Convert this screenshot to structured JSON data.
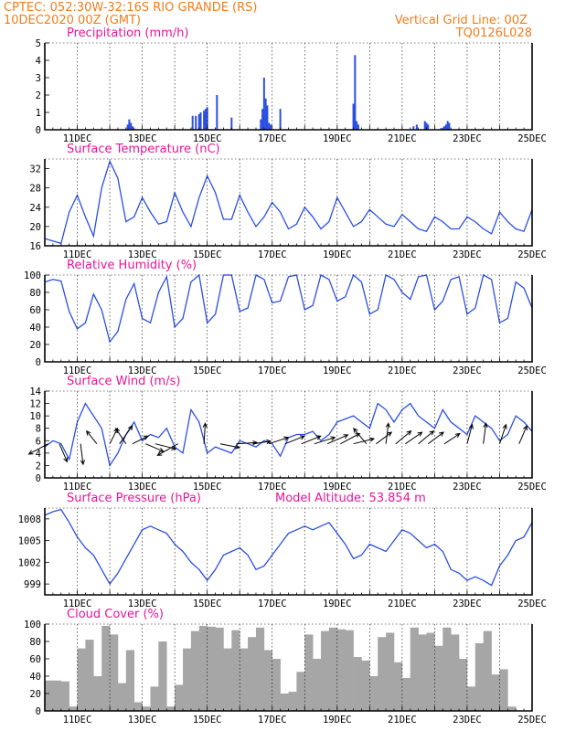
{
  "header": {
    "line1": "CPTEC:   052:30W-32:16S   RIO GRANDE (RS)",
    "line2": "10DEC2020 00Z (GMT)",
    "right1": "Vertical Grid Line: 00Z",
    "right2": "TQ0126L028"
  },
  "x_axis": {
    "start": "10DEC2020 00Z",
    "end": "25DEC2020 00Z",
    "tick_labels": [
      "11DEC",
      "13DEC",
      "15DEC",
      "17DEC",
      "19DEC",
      "21DEC",
      "23DEC",
      "25DEC"
    ],
    "tick_days": [
      1,
      3,
      5,
      7,
      9,
      11,
      13,
      15
    ]
  },
  "colors": {
    "header": "#f07d1a",
    "title": "#e8159b",
    "series": "#2b4fe0",
    "cloud": "#a6a6a6"
  },
  "chart_data": [
    {
      "type": "bar",
      "title": "Precipitation (mm/h)",
      "ylim": [
        0,
        5
      ],
      "y_ticks": [
        0,
        1,
        2,
        3,
        4,
        5
      ],
      "x_unit": "days since 10DEC2020 00Z",
      "points": [
        [
          2.55,
          0.3
        ],
        [
          2.6,
          0.6
        ],
        [
          2.65,
          0.4
        ],
        [
          2.7,
          0.2
        ],
        [
          4.55,
          0.8
        ],
        [
          4.65,
          0.8
        ],
        [
          4.75,
          0.9
        ],
        [
          4.8,
          1.0
        ],
        [
          4.9,
          1.1
        ],
        [
          4.95,
          1.2
        ],
        [
          5.0,
          1.3
        ],
        [
          5.3,
          2.0
        ],
        [
          5.75,
          0.7
        ],
        [
          6.65,
          0.6
        ],
        [
          6.7,
          1.2
        ],
        [
          6.75,
          3.0
        ],
        [
          6.8,
          1.8
        ],
        [
          6.85,
          1.4
        ],
        [
          6.9,
          0.4
        ],
        [
          6.95,
          0.3
        ],
        [
          7.25,
          1.2
        ],
        [
          9.5,
          1.5
        ],
        [
          9.55,
          4.3
        ],
        [
          9.6,
          0.5
        ],
        [
          9.65,
          0.3
        ],
        [
          11.35,
          0.2
        ],
        [
          11.45,
          0.3
        ],
        [
          11.7,
          0.5
        ],
        [
          11.75,
          0.4
        ],
        [
          11.8,
          0.3
        ],
        [
          12.2,
          0.1
        ],
        [
          12.3,
          0.2
        ],
        [
          12.35,
          0.3
        ],
        [
          12.4,
          0.5
        ],
        [
          12.45,
          0.4
        ]
      ]
    },
    {
      "type": "line",
      "title": "Surface Temperature (nC)",
      "ylim": [
        16,
        34
      ],
      "y_ticks": [
        16,
        20,
        24,
        28,
        32
      ],
      "x": [
        0,
        0.25,
        0.5,
        0.75,
        1.0,
        1.25,
        1.5,
        1.75,
        2.0,
        2.25,
        2.5,
        2.75,
        3.0,
        3.25,
        3.5,
        3.75,
        4.0,
        4.25,
        4.5,
        4.75,
        5.0,
        5.25,
        5.5,
        5.75,
        6.0,
        6.25,
        6.5,
        6.75,
        7.0,
        7.25,
        7.5,
        7.75,
        8.0,
        8.25,
        8.5,
        8.75,
        9.0,
        9.25,
        9.5,
        9.75,
        10.0,
        10.25,
        10.5,
        10.75,
        11.0,
        11.25,
        11.5,
        11.75,
        12.0,
        12.25,
        12.5,
        12.75,
        13.0,
        13.25,
        13.5,
        13.75,
        14.0,
        14.25,
        14.5,
        14.75,
        15.0
      ],
      "values": [
        17.5,
        17,
        16.5,
        23,
        26.5,
        22,
        18,
        28,
        33.5,
        30,
        21,
        22,
        26,
        23,
        20.5,
        21,
        27,
        23,
        20,
        26,
        30.5,
        27,
        21.5,
        21.5,
        26.5,
        23,
        20,
        22,
        25,
        23,
        19.5,
        20.5,
        24,
        22,
        19.5,
        21,
        26,
        23,
        20,
        21,
        23.5,
        22,
        20.5,
        20,
        22.5,
        21,
        19.5,
        19,
        22,
        21,
        19.5,
        19.5,
        22,
        21,
        19.5,
        18.5,
        23,
        21,
        19.5,
        19,
        23.5
      ]
    },
    {
      "type": "line",
      "title": "Relative Humidity (%)",
      "ylim": [
        0,
        100
      ],
      "y_ticks": [
        0,
        20,
        40,
        60,
        80,
        100
      ],
      "x": [
        0,
        0.25,
        0.5,
        0.75,
        1.0,
        1.25,
        1.5,
        1.75,
        2.0,
        2.25,
        2.5,
        2.75,
        3.0,
        3.25,
        3.5,
        3.75,
        4.0,
        4.25,
        4.5,
        4.75,
        5.0,
        5.25,
        5.5,
        5.75,
        6.0,
        6.25,
        6.5,
        6.75,
        7.0,
        7.25,
        7.5,
        7.75,
        8.0,
        8.25,
        8.5,
        8.75,
        9.0,
        9.25,
        9.5,
        9.75,
        10.0,
        10.25,
        10.5,
        10.75,
        11.0,
        11.25,
        11.5,
        11.75,
        12.0,
        12.25,
        12.5,
        12.75,
        13.0,
        13.25,
        13.5,
        13.75,
        14.0,
        14.25,
        14.5,
        14.75,
        15.0
      ],
      "values": [
        92,
        95,
        93,
        58,
        38,
        45,
        78,
        60,
        23,
        35,
        72,
        90,
        50,
        45,
        80,
        98,
        40,
        50,
        92,
        100,
        45,
        55,
        100,
        100,
        58,
        62,
        100,
        95,
        68,
        70,
        98,
        100,
        60,
        65,
        100,
        95,
        70,
        75,
        100,
        92,
        55,
        60,
        100,
        95,
        80,
        72,
        98,
        100,
        60,
        70,
        95,
        98,
        55,
        62,
        100,
        95,
        45,
        50,
        92,
        85,
        62
      ]
    },
    {
      "type": "line",
      "title": "Surface Wind (m/s)",
      "ylim": [
        0,
        14
      ],
      "y_ticks": [
        0,
        2,
        4,
        6,
        8,
        10,
        12,
        14
      ],
      "x": [
        0,
        0.25,
        0.5,
        0.75,
        1.0,
        1.25,
        1.5,
        1.75,
        2.0,
        2.25,
        2.5,
        2.75,
        3.0,
        3.25,
        3.5,
        3.75,
        4.0,
        4.25,
        4.5,
        4.75,
        5.0,
        5.25,
        5.5,
        5.75,
        6.0,
        6.25,
        6.5,
        6.75,
        7.0,
        7.25,
        7.5,
        7.75,
        8.0,
        8.25,
        8.5,
        8.75,
        9.0,
        9.25,
        9.5,
        9.75,
        10.0,
        10.25,
        10.5,
        10.75,
        11.0,
        11.25,
        11.5,
        11.75,
        12.0,
        12.25,
        12.5,
        12.75,
        13.0,
        13.25,
        13.5,
        13.75,
        14.0,
        14.25,
        14.5,
        14.75,
        15.0
      ],
      "values": [
        5,
        6,
        5.5,
        3,
        9,
        12,
        10,
        8,
        2,
        4,
        7,
        9,
        6,
        7,
        6.5,
        8,
        5,
        4,
        11,
        9,
        4,
        5,
        4.5,
        4,
        6,
        5.5,
        5,
        6,
        5.5,
        3.5,
        6.5,
        7,
        7,
        7.5,
        6,
        7,
        9,
        9.5,
        10,
        9,
        8,
        12,
        11,
        9,
        11,
        12,
        10,
        9,
        8,
        11,
        9,
        8,
        7,
        10,
        9,
        8,
        6,
        7,
        10,
        9,
        7.5
      ],
      "wind_arrows": [
        {
          "day": 0.1,
          "u": -1.5,
          "v": -0.8
        },
        {
          "day": 0.45,
          "u": 0.6,
          "v": -1.4
        },
        {
          "day": 1.1,
          "u": 0.2,
          "v": -1.6
        },
        {
          "day": 1.6,
          "u": -0.8,
          "v": 1.0
        },
        {
          "day": 2.0,
          "u": 0.6,
          "v": 1.2
        },
        {
          "day": 2.3,
          "u": 1.0,
          "v": 1.4
        },
        {
          "day": 2.5,
          "u": -0.8,
          "v": 1.2
        },
        {
          "day": 2.7,
          "u": 1.2,
          "v": 0.6
        },
        {
          "day": 3.1,
          "u": 1.4,
          "v": -0.6
        },
        {
          "day": 3.4,
          "u": 1.6,
          "v": -0.4
        },
        {
          "day": 4.1,
          "u": -1.6,
          "v": -0.9
        },
        {
          "day": 4.9,
          "u": 0.1,
          "v": 1.6
        },
        {
          "day": 5.4,
          "u": 1.5,
          "v": -0.3
        },
        {
          "day": 5.9,
          "u": 1.6,
          "v": 0.1
        },
        {
          "day": 6.4,
          "u": 1.4,
          "v": 0.2
        },
        {
          "day": 6.9,
          "u": 1.5,
          "v": 0.5
        },
        {
          "day": 7.4,
          "u": 1.5,
          "v": 0.6
        },
        {
          "day": 7.9,
          "u": 1.5,
          "v": 0.6
        },
        {
          "day": 8.3,
          "u": 1.6,
          "v": 0.5
        },
        {
          "day": 8.7,
          "u": 1.6,
          "v": 0.7
        },
        {
          "day": 9.1,
          "u": 1.5,
          "v": 0.8
        },
        {
          "day": 9.5,
          "u": 1.6,
          "v": 0.4
        },
        {
          "day": 9.9,
          "u": -1.0,
          "v": 1.2
        },
        {
          "day": 10.2,
          "u": 1.2,
          "v": 0.9
        },
        {
          "day": 10.5,
          "u": 0.2,
          "v": 1.6
        },
        {
          "day": 10.8,
          "u": 1.2,
          "v": 1.0
        },
        {
          "day": 11.1,
          "u": 1.3,
          "v": 0.9
        },
        {
          "day": 11.5,
          "u": 1.2,
          "v": 1.0
        },
        {
          "day": 11.8,
          "u": 1.2,
          "v": 0.9
        },
        {
          "day": 12.3,
          "u": 1.2,
          "v": 0.8
        },
        {
          "day": 13.0,
          "u": 0.4,
          "v": 1.5
        },
        {
          "day": 13.5,
          "u": 0.2,
          "v": 1.6
        },
        {
          "day": 14.0,
          "u": 0.5,
          "v": 1.5
        },
        {
          "day": 14.6,
          "u": 0.6,
          "v": 1.4
        }
      ]
    },
    {
      "type": "line",
      "title": "Surface Pressure (hPa)",
      "annotation": "Model Altitude: 53.854  m",
      "ylim": [
        997.5,
        1009.5
      ],
      "y_ticks": [
        999,
        1002,
        1005,
        1008
      ],
      "x": [
        0,
        0.25,
        0.5,
        0.75,
        1.0,
        1.25,
        1.5,
        1.75,
        2.0,
        2.25,
        2.5,
        2.75,
        3.0,
        3.25,
        3.5,
        3.75,
        4.0,
        4.25,
        4.5,
        4.75,
        5.0,
        5.25,
        5.5,
        5.75,
        6.0,
        6.25,
        6.5,
        6.75,
        7.0,
        7.25,
        7.5,
        7.75,
        8.0,
        8.25,
        8.5,
        8.75,
        9.0,
        9.25,
        9.5,
        9.75,
        10.0,
        10.25,
        10.5,
        10.75,
        11.0,
        11.25,
        11.5,
        11.75,
        12.0,
        12.25,
        12.5,
        12.75,
        13.0,
        13.25,
        13.5,
        13.75,
        14.0,
        14.25,
        14.5,
        14.75,
        15.0
      ],
      "values": [
        1008.5,
        1009,
        1009.3,
        1007.5,
        1005.5,
        1004,
        1003,
        1001,
        999,
        1000.5,
        1002.5,
        1004.5,
        1006.5,
        1007,
        1006.5,
        1006,
        1004.5,
        1003.5,
        1002,
        1001,
        999.5,
        1001,
        1003,
        1003.5,
        1004,
        1003,
        1001,
        1001.5,
        1003,
        1004.5,
        1006,
        1006.5,
        1007,
        1006.5,
        1007,
        1007.5,
        1006,
        1004.5,
        1002.5,
        1003,
        1004.5,
        1004,
        1003.5,
        1005,
        1006.5,
        1006,
        1005,
        1004,
        1004.5,
        1003.5,
        1001,
        1000.5,
        999.5,
        1000,
        999.5,
        998.8,
        1001.5,
        1003,
        1005,
        1005.5,
        1007.5
      ]
    },
    {
      "type": "area",
      "title": "Cloud Cover (%)",
      "ylim": [
        0,
        100
      ],
      "y_ticks": [
        0,
        20,
        40,
        60,
        80,
        100
      ],
      "x": [
        0,
        0.25,
        0.5,
        0.75,
        1.0,
        1.25,
        1.5,
        1.75,
        2.0,
        2.25,
        2.5,
        2.75,
        3.0,
        3.25,
        3.5,
        3.75,
        4.0,
        4.25,
        4.5,
        4.75,
        5.0,
        5.25,
        5.5,
        5.75,
        6.0,
        6.25,
        6.5,
        6.75,
        7.0,
        7.25,
        7.5,
        7.75,
        8.0,
        8.25,
        8.5,
        8.75,
        9.0,
        9.25,
        9.5,
        9.75,
        10.0,
        10.25,
        10.5,
        10.75,
        11.0,
        11.25,
        11.5,
        11.75,
        12.0,
        12.25,
        12.5,
        12.75,
        13.0,
        13.25,
        13.5,
        13.75,
        14.0,
        14.25,
        14.5,
        14.75
      ],
      "values": [
        35,
        35,
        34,
        5,
        72,
        82,
        40,
        98,
        88,
        32,
        70,
        10,
        5,
        28,
        80,
        5,
        30,
        72,
        92,
        98,
        97,
        96,
        72,
        93,
        72,
        85,
        96,
        70,
        60,
        20,
        22,
        45,
        88,
        60,
        92,
        96,
        94,
        93,
        62,
        58,
        40,
        85,
        90,
        56,
        38,
        96,
        88,
        90,
        75,
        96,
        88,
        60,
        28,
        78,
        92,
        42,
        48,
        5,
        0,
        0
      ]
    }
  ]
}
